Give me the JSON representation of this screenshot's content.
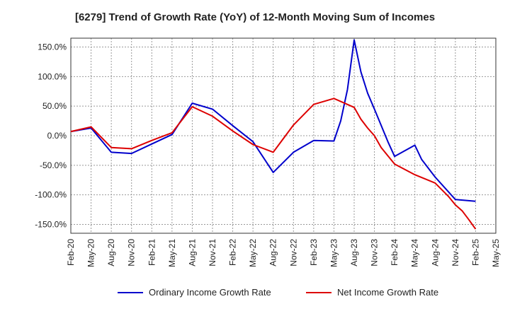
{
  "chart_data": {
    "type": "line",
    "title": "[6279]  Trend of Growth Rate (YoY) of 12-Month Moving Sum of Incomes",
    "xlabel": "",
    "ylabel": "",
    "ylim": [
      -165,
      165
    ],
    "yticks": [
      150,
      100,
      50,
      0,
      -50,
      -100,
      -150
    ],
    "ytick_labels": [
      "150.0%",
      "100.0%",
      "50.0%",
      "0.0%",
      "-50.0%",
      "-100.0%",
      "-150.0%"
    ],
    "xtick_labels": [
      "Feb-20",
      "May-20",
      "Aug-20",
      "Nov-20",
      "Feb-21",
      "May-21",
      "Aug-21",
      "Nov-21",
      "Feb-22",
      "May-22",
      "Aug-22",
      "Nov-22",
      "Feb-23",
      "May-23",
      "Aug-23",
      "Nov-23",
      "Feb-24",
      "May-24",
      "Aug-24",
      "Nov-24",
      "Feb-25",
      "May-25"
    ],
    "grid": true,
    "legend_position": "bottom",
    "series": [
      {
        "name": "Ordinary Income Growth Rate",
        "color": "#0000cc",
        "points": [
          [
            0,
            7
          ],
          [
            3,
            13
          ],
          [
            6,
            -28
          ],
          [
            9,
            -30
          ],
          [
            12,
            -14
          ],
          [
            15,
            2
          ],
          [
            18,
            55
          ],
          [
            21,
            45
          ],
          [
            24,
            17
          ],
          [
            27,
            -10
          ],
          [
            30,
            -62
          ],
          [
            33,
            -28
          ],
          [
            36,
            -8
          ],
          [
            39,
            -9
          ],
          [
            40,
            25
          ],
          [
            41,
            78
          ],
          [
            42,
            162
          ],
          [
            43,
            108
          ],
          [
            44,
            72
          ],
          [
            45,
            45
          ],
          [
            47,
            -10
          ],
          [
            48,
            -35
          ],
          [
            51,
            -16
          ],
          [
            52,
            -40
          ],
          [
            54,
            -70
          ],
          [
            57,
            -108
          ],
          [
            60,
            -111
          ]
        ]
      },
      {
        "name": "Net Income Growth Rate",
        "color": "#dd0000",
        "points": [
          [
            0,
            7
          ],
          [
            3,
            15
          ],
          [
            6,
            -20
          ],
          [
            9,
            -22
          ],
          [
            12,
            -8
          ],
          [
            15,
            5
          ],
          [
            18,
            49
          ],
          [
            21,
            33
          ],
          [
            24,
            8
          ],
          [
            27,
            -15
          ],
          [
            30,
            -28
          ],
          [
            33,
            18
          ],
          [
            36,
            53
          ],
          [
            39,
            63
          ],
          [
            42,
            48
          ],
          [
            43,
            28
          ],
          [
            44,
            13
          ],
          [
            45,
            0
          ],
          [
            46,
            -20
          ],
          [
            48,
            -48
          ],
          [
            51,
            -66
          ],
          [
            54,
            -80
          ],
          [
            56,
            -103
          ],
          [
            57,
            -117
          ],
          [
            58,
            -127
          ],
          [
            59,
            -142
          ],
          [
            60,
            -158
          ]
        ]
      }
    ]
  }
}
